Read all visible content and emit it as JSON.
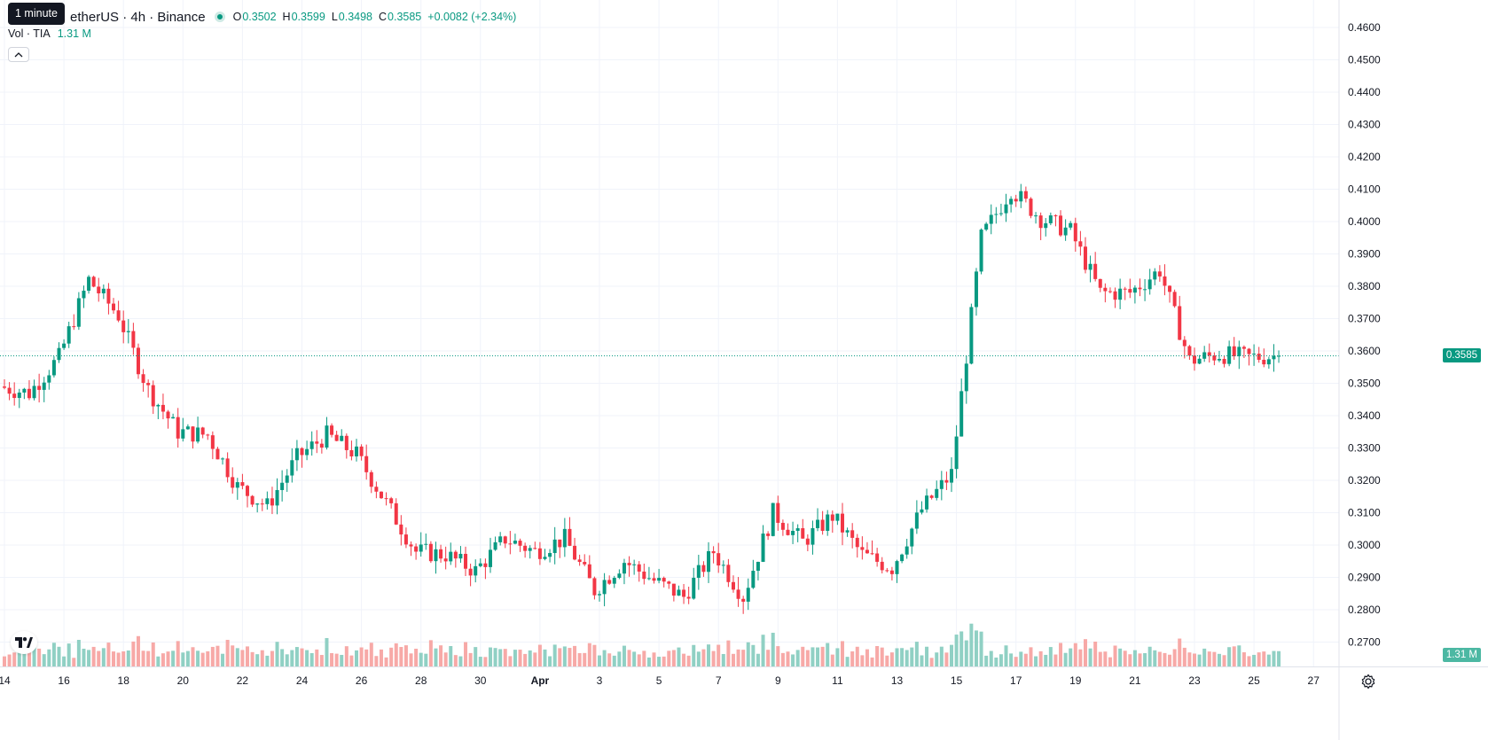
{
  "legend": {
    "symbol_title": "etherUS · 4h · Binance",
    "ohlc": [
      {
        "label": "O",
        "value": "0.3502"
      },
      {
        "label": "H",
        "value": "0.3599"
      },
      {
        "label": "L",
        "value": "0.3498"
      },
      {
        "label": "C",
        "value": "0.3585"
      }
    ],
    "change": "+0.0082 (+2.34%)",
    "tooltip": "1 minute"
  },
  "volume_legend": {
    "label": "Vol · TIA",
    "value": "1.31 M"
  },
  "price_axis": {
    "labels": [
      "0.4600",
      "0.4500",
      "0.4400",
      "0.4300",
      "0.4200",
      "0.4100",
      "0.4000",
      "0.3900",
      "0.3800",
      "0.3700",
      "0.3600",
      "0.3500",
      "0.3400",
      "0.3300",
      "0.3200",
      "0.3100",
      "0.3000",
      "0.2900",
      "0.2800",
      "0.2700"
    ],
    "current_price": "0.3585",
    "current_volume": "1.31 M"
  },
  "time_axis": {
    "labels": [
      "14",
      "16",
      "18",
      "20",
      "22",
      "24",
      "26",
      "28",
      "30",
      "Apr",
      "3",
      "5",
      "7",
      "9",
      "11",
      "13",
      "15",
      "17",
      "19",
      "21",
      "23",
      "25",
      "27"
    ]
  },
  "colors": {
    "up": "#089981",
    "down": "#f23645",
    "vol_up": "#90d0c4",
    "vol_down": "#f7a9a7",
    "grid": "#f0f3fa"
  },
  "icons": {
    "logo": "tradingview-logo-icon",
    "settings": "gear-icon",
    "collapse": "chevron-up-icon"
  },
  "chart_data": {
    "type": "candlestick",
    "timeframe": "4h",
    "ylim": [
      0.27,
      0.46
    ],
    "anchors": [
      {
        "x": "Mar 14",
        "close": 0.349
      },
      {
        "x": "Mar 15",
        "close": 0.347
      },
      {
        "x": "Mar 16",
        "close": 0.358
      },
      {
        "x": "Mar 17",
        "close": 0.382
      },
      {
        "x": "Mar 18",
        "close": 0.371
      },
      {
        "x": "Mar 19",
        "close": 0.348
      },
      {
        "x": "Mar 20",
        "close": 0.335
      },
      {
        "x": "Mar 21",
        "close": 0.334
      },
      {
        "x": "Mar 22",
        "close": 0.318
      },
      {
        "x": "Mar 23",
        "close": 0.312
      },
      {
        "x": "Mar 24",
        "close": 0.327
      },
      {
        "x": "Mar 25",
        "close": 0.334
      },
      {
        "x": "Mar 26",
        "close": 0.328
      },
      {
        "x": "Mar 27",
        "close": 0.313
      },
      {
        "x": "Mar 28",
        "close": 0.298
      },
      {
        "x": "Mar 29",
        "close": 0.297
      },
      {
        "x": "Mar 30",
        "close": 0.292
      },
      {
        "x": "Mar 31",
        "close": 0.302
      },
      {
        "x": "Apr 1",
        "close": 0.298
      },
      {
        "x": "Apr 2",
        "close": 0.302
      },
      {
        "x": "Apr 3",
        "close": 0.286
      },
      {
        "x": "Apr 4",
        "close": 0.295
      },
      {
        "x": "Apr 5",
        "close": 0.289
      },
      {
        "x": "Apr 6",
        "close": 0.284
      },
      {
        "x": "Apr 7",
        "close": 0.298
      },
      {
        "x": "Apr 8",
        "close": 0.284
      },
      {
        "x": "Apr 9",
        "close": 0.31
      },
      {
        "x": "Apr 10",
        "close": 0.301
      },
      {
        "x": "Apr 11",
        "close": 0.309
      },
      {
        "x": "Apr 12",
        "close": 0.297
      },
      {
        "x": "Apr 13",
        "close": 0.293
      },
      {
        "x": "Apr 14",
        "close": 0.311
      },
      {
        "x": "Apr 15",
        "close": 0.322
      },
      {
        "x": "Apr 16",
        "close": 0.395
      },
      {
        "x": "Apr 17",
        "close": 0.41
      },
      {
        "x": "Apr 18",
        "close": 0.401
      },
      {
        "x": "Apr 19",
        "close": 0.397
      },
      {
        "x": "Apr 20",
        "close": 0.378
      },
      {
        "x": "Apr 21",
        "close": 0.378
      },
      {
        "x": "Apr 22",
        "close": 0.385
      },
      {
        "x": "Apr 23",
        "close": 0.357
      },
      {
        "x": "Apr 24",
        "close": 0.359
      },
      {
        "x": "Apr 25",
        "close": 0.358
      },
      {
        "x": "Apr 26",
        "close": 0.3585
      }
    ]
  }
}
